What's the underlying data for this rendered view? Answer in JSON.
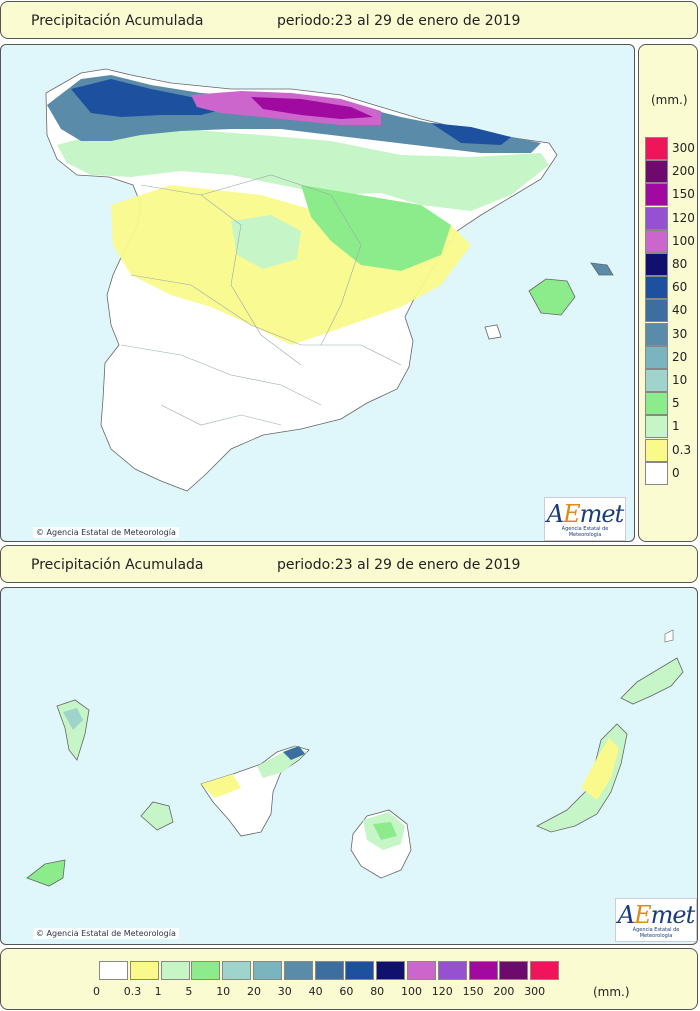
{
  "header_top": {
    "title": "Precipitación Acumulada",
    "period": "periodo:23 al 29 de enero de 2019"
  },
  "header_mid": {
    "title": "Precipitación Acumulada",
    "period": "periodo:23 al 29 de enero de 2019"
  },
  "copyright": "Agencia Estatal de Meteorología",
  "logo": {
    "brand_a": "A",
    "brand_e": "E",
    "brand_rest": "met",
    "sub": "Agencia Estatal de Meteorología"
  },
  "legend": {
    "unit": "(mm.)",
    "classes": [
      {
        "label": "0",
        "color": "#ffffff"
      },
      {
        "label": "0.3",
        "color": "#fafa8c"
      },
      {
        "label": "1",
        "color": "#c6f5c8"
      },
      {
        "label": "5",
        "color": "#8cec8c"
      },
      {
        "label": "10",
        "color": "#9ed4cc"
      },
      {
        "label": "20",
        "color": "#7ab4be"
      },
      {
        "label": "30",
        "color": "#5a8caa"
      },
      {
        "label": "40",
        "color": "#3c6ea0"
      },
      {
        "label": "60",
        "color": "#1e50a0"
      },
      {
        "label": "80",
        "color": "#10106e"
      },
      {
        "label": "100",
        "color": "#cc66cc"
      },
      {
        "label": "120",
        "color": "#9650d2"
      },
      {
        "label": "150",
        "color": "#a00aa0"
      },
      {
        "label": "200",
        "color": "#6e0a6e"
      },
      {
        "label": "300",
        "color": "#f0145a"
      }
    ]
  }
}
